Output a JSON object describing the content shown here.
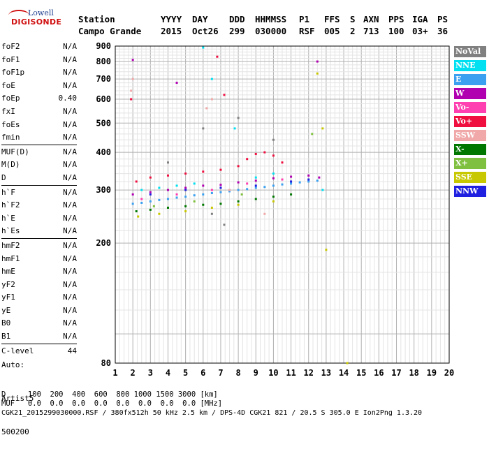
{
  "logo": {
    "brand_top": "Lowell",
    "brand_bottom": "DIGISONDE"
  },
  "header": {
    "row1": [
      "Station",
      "YYYY",
      "DAY",
      "DDD",
      "HHMMSS",
      "P1",
      "FFS",
      "S",
      "AXN",
      "PPS",
      "IGA",
      "PS"
    ],
    "row2": [
      "Campo Grande",
      "2015",
      "Oct26",
      "299",
      "030000",
      "RSF",
      "005",
      "2",
      "713",
      "100",
      "03+",
      "36"
    ]
  },
  "params": [
    {
      "k": "foF2",
      "v": "N/A"
    },
    {
      "k": "foF1",
      "v": "N/A"
    },
    {
      "k": "foF1p",
      "v": "N/A"
    },
    {
      "k": "foE",
      "v": "N/A"
    },
    {
      "k": "foEp",
      "v": "0.40"
    },
    {
      "k": "fxI",
      "v": "N/A"
    },
    {
      "k": "foEs",
      "v": "N/A"
    },
    {
      "k": "fmin",
      "v": "N/A"
    },
    {
      "k": "MUF(D)",
      "v": "N/A"
    },
    {
      "k": "M(D)",
      "v": "N/A"
    },
    {
      "k": "D",
      "v": "N/A"
    },
    {
      "k": "h`F",
      "v": "N/A"
    },
    {
      "k": "h`F2",
      "v": "N/A"
    },
    {
      "k": "h`E",
      "v": "N/A"
    },
    {
      "k": "h`Es",
      "v": "N/A"
    },
    {
      "k": "hmF2",
      "v": "N/A"
    },
    {
      "k": "hmF1",
      "v": "N/A"
    },
    {
      "k": "hmE",
      "v": "N/A"
    },
    {
      "k": "yF2",
      "v": "N/A"
    },
    {
      "k": "yF1",
      "v": "N/A"
    },
    {
      "k": "yE",
      "v": "N/A"
    },
    {
      "k": "B0",
      "v": "N/A"
    },
    {
      "k": "B1",
      "v": "N/A"
    },
    {
      "k": "C-level",
      "v": "44"
    }
  ],
  "auto": {
    "line1": "Auto:",
    "line2": "Artist5",
    "line3": "500200"
  },
  "bottom": {
    "d_row": "D     100  200  400  600  800 1000 1500 3000 [km]",
    "muf_row": "MUF   0.0  0.0  0.0  0.0  0.0  0.0  0.0  0.0 [MHz]",
    "footer": "CGK21_2015299030000.RSF / 380fx512h 50 kHz 2.5 km / DPS-4D CGK21 821 / 20.5 S 305.0 E Ion2Png 1.3.20"
  },
  "legend": [
    {
      "label": "NoVal",
      "color": "#808080"
    },
    {
      "label": "NNE",
      "color": "#00e0f0"
    },
    {
      "label": "E",
      "color": "#3ca0f0"
    },
    {
      "label": "W",
      "color": "#b000b0"
    },
    {
      "label": "Vo-",
      "color": "#ff40b0"
    },
    {
      "label": "Vo+",
      "color": "#f01040"
    },
    {
      "label": "SSW",
      "color": "#f0a8a8"
    },
    {
      "label": "X-",
      "color": "#007800"
    },
    {
      "label": "X+",
      "color": "#80c040"
    },
    {
      "label": "SSE",
      "color": "#c8c800"
    },
    {
      "label": "NNW",
      "color": "#2020e0"
    }
  ],
  "chart_data": {
    "type": "scatter",
    "xlim": [
      1,
      20
    ],
    "ylim": [
      80,
      900
    ],
    "y_scale": "log",
    "x_ticks": [
      "1",
      "2",
      "3",
      "4",
      "5",
      "6",
      "7",
      "8",
      "9",
      "10",
      "11",
      "12",
      "13",
      "14",
      "15",
      "16",
      "17",
      "18",
      "19",
      "20"
    ],
    "y_ticks": [
      {
        "v": 80,
        "label": "80"
      },
      {
        "v": 200,
        "label": "200"
      },
      {
        "v": 300,
        "label": "300"
      },
      {
        "v": 400,
        "label": "400"
      },
      {
        "v": 500,
        "label": "500"
      },
      {
        "v": 600,
        "label": "600"
      },
      {
        "v": 700,
        "label": "700"
      },
      {
        "v": 800,
        "label": "800"
      },
      {
        "v": 900,
        "label": "900"
      }
    ],
    "grid": true,
    "series": [
      {
        "color": "#3ca0f0",
        "points": [
          [
            2.0,
            270
          ],
          [
            2.5,
            272
          ],
          [
            3.0,
            275
          ],
          [
            3.5,
            278
          ],
          [
            4.0,
            280
          ],
          [
            4.5,
            283
          ],
          [
            5.0,
            285
          ],
          [
            5.5,
            288
          ],
          [
            6.0,
            290
          ],
          [
            6.5,
            293
          ],
          [
            7.0,
            295
          ],
          [
            7.5,
            297
          ],
          [
            8.0,
            300
          ],
          [
            8.5,
            302
          ],
          [
            9.0,
            305
          ],
          [
            9.5,
            307
          ],
          [
            10.0,
            310
          ],
          [
            10.5,
            313
          ],
          [
            11.0,
            315
          ],
          [
            11.5,
            318
          ],
          [
            12.0,
            320
          ],
          [
            12.5,
            322
          ]
        ]
      },
      {
        "color": "#b000b0",
        "points": [
          [
            2.0,
            290
          ],
          [
            3.0,
            295
          ],
          [
            4.0,
            300
          ],
          [
            5.0,
            305
          ],
          [
            6.0,
            310
          ],
          [
            7.0,
            312
          ],
          [
            8.0,
            318
          ],
          [
            9.0,
            322
          ],
          [
            10.0,
            328
          ],
          [
            11.0,
            332
          ],
          [
            12.0,
            335
          ],
          [
            12.6,
            330
          ],
          [
            12.5,
            800
          ],
          [
            4.5,
            680
          ],
          [
            2.0,
            810
          ]
        ]
      },
      {
        "color": "#f01040",
        "points": [
          [
            2.2,
            320
          ],
          [
            3.0,
            330
          ],
          [
            4.0,
            335
          ],
          [
            5.0,
            340
          ],
          [
            6.0,
            345
          ],
          [
            7.0,
            350
          ],
          [
            8.0,
            360
          ],
          [
            8.5,
            380
          ],
          [
            9.0,
            395
          ],
          [
            9.5,
            400
          ],
          [
            10.0,
            390
          ],
          [
            10.5,
            370
          ],
          [
            1.9,
            600
          ],
          [
            6.8,
            830
          ],
          [
            7.2,
            620
          ]
        ]
      },
      {
        "color": "#007800",
        "points": [
          [
            2.2,
            255
          ],
          [
            3.0,
            258
          ],
          [
            4.0,
            262
          ],
          [
            5.0,
            265
          ],
          [
            6.0,
            268
          ],
          [
            7.0,
            270
          ],
          [
            8.0,
            275
          ],
          [
            9.0,
            280
          ],
          [
            10.0,
            285
          ],
          [
            11.0,
            290
          ]
        ]
      },
      {
        "color": "#00e0f0",
        "points": [
          [
            2.5,
            300
          ],
          [
            3.5,
            305
          ],
          [
            4.5,
            310
          ],
          [
            5.5,
            315
          ],
          [
            6.0,
            890
          ],
          [
            6.5,
            700
          ],
          [
            7.8,
            480
          ],
          [
            9.0,
            330
          ],
          [
            10.0,
            340
          ],
          [
            12.8,
            300
          ]
        ]
      },
      {
        "color": "#c8c800",
        "points": [
          [
            2.3,
            245
          ],
          [
            3.5,
            250
          ],
          [
            5.0,
            255
          ],
          [
            6.5,
            262
          ],
          [
            8.0,
            268
          ],
          [
            10.0,
            275
          ],
          [
            12.5,
            730
          ],
          [
            12.8,
            480
          ],
          [
            13.0,
            190
          ],
          [
            14.2,
            80
          ]
        ]
      },
      {
        "color": "#f0a8a8",
        "points": [
          [
            1.9,
            640
          ],
          [
            2.0,
            700
          ],
          [
            6.2,
            560
          ],
          [
            6.5,
            600
          ],
          [
            7.5,
            300
          ],
          [
            9.5,
            250
          ]
        ]
      },
      {
        "color": "#2020e0",
        "points": [
          [
            3.0,
            290
          ],
          [
            5.0,
            300
          ],
          [
            7.0,
            305
          ],
          [
            9.0,
            310
          ],
          [
            11.0,
            320
          ],
          [
            12.0,
            325
          ]
        ]
      },
      {
        "color": "#ff40b0",
        "points": [
          [
            2.5,
            280
          ],
          [
            4.5,
            290
          ],
          [
            6.5,
            300
          ],
          [
            8.5,
            315
          ],
          [
            10.5,
            325
          ]
        ]
      },
      {
        "color": "#808080",
        "points": [
          [
            4.0,
            370
          ],
          [
            6.0,
            480
          ],
          [
            8.0,
            520
          ],
          [
            10.0,
            440
          ],
          [
            6.5,
            250
          ],
          [
            7.2,
            230
          ]
        ]
      },
      {
        "color": "#80c040",
        "points": [
          [
            3.2,
            265
          ],
          [
            5.5,
            275
          ],
          [
            8.2,
            290
          ],
          [
            12.2,
            460
          ]
        ]
      }
    ]
  }
}
